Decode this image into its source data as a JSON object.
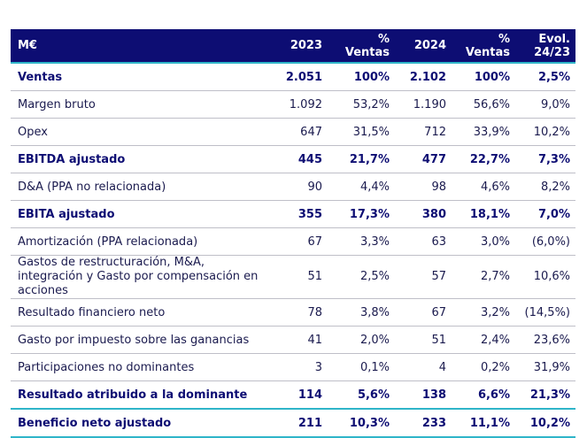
{
  "header": [
    "M€",
    "2023",
    "% Ventas",
    "2024",
    "% Ventas",
    "Evol. 24/23"
  ],
  "rows": [
    {
      "style": "bold",
      "cells": [
        "Ventas",
        "2.051",
        "100%",
        "2.102",
        "100%",
        "2,5%"
      ]
    },
    {
      "style": "reg",
      "cells": [
        "Margen bruto",
        "1.092",
        "53,2%",
        "1.190",
        "56,6%",
        "9,0%"
      ]
    },
    {
      "style": "reg",
      "cells": [
        "Opex",
        "647",
        "31,5%",
        "712",
        "33,9%",
        "10,2%"
      ]
    },
    {
      "style": "bold",
      "cells": [
        "EBITDA ajustado",
        "445",
        "21,7%",
        "477",
        "22,7%",
        "7,3%"
      ]
    },
    {
      "style": "reg",
      "cells": [
        "D&A (PPA no relacionada)",
        "90",
        "4,4%",
        "98",
        "4,6%",
        "8,2%"
      ]
    },
    {
      "style": "bold",
      "cells": [
        "EBITA ajustado",
        "355",
        "17,3%",
        "380",
        "18,1%",
        "7,0%"
      ]
    },
    {
      "style": "reg",
      "cells": [
        "Amortización (PPA relacionada)",
        "67",
        "3,3%",
        "63",
        "3,0%",
        "(6,0%)"
      ]
    },
    {
      "style": "reg",
      "cells": [
        "Gastos de restructuración, M&A, integración y Gasto por compensación en acciones",
        "51",
        "2,5%",
        "57",
        "2,7%",
        "10,6%"
      ]
    },
    {
      "style": "reg",
      "cells": [
        "Resultado financiero neto",
        "78",
        "3,8%",
        "67",
        "3,2%",
        "(14,5%)"
      ]
    },
    {
      "style": "reg",
      "cells": [
        "Gasto por impuesto sobre las ganancias",
        "41",
        "2,0%",
        "51",
        "2,4%",
        "23,6%"
      ]
    },
    {
      "style": "reg",
      "cells": [
        "Participaciones no dominantes",
        "3",
        "0,1%",
        "4",
        "0,2%",
        "31,9%"
      ]
    },
    {
      "style": "bold",
      "cells": [
        "Resultado atribuido a la dominante",
        "114",
        "5,6%",
        "138",
        "6,6%",
        "21,3%"
      ]
    },
    {
      "style": "bold",
      "cells": [
        "Beneficio neto ajustado",
        "211",
        "10,3%",
        "233",
        "11,1%",
        "10,2%"
      ]
    }
  ],
  "colors": {
    "header_bg": "#0d0d73",
    "accent_line": "#2fb5c9",
    "bold_text": "#0d0d73"
  }
}
